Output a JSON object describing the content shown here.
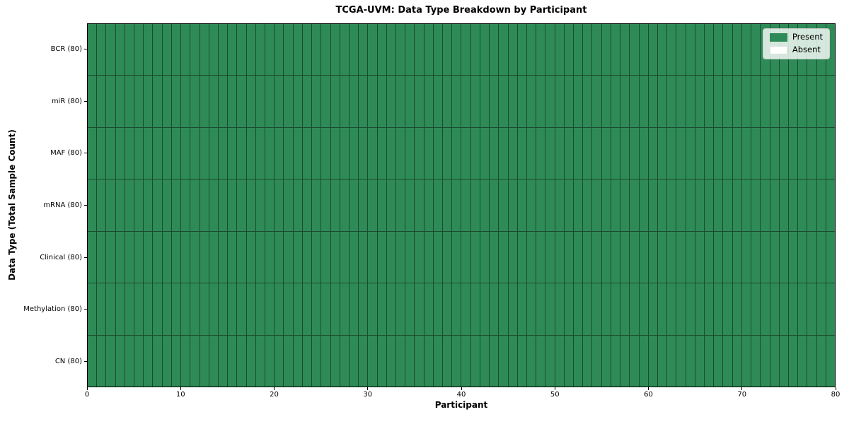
{
  "chart_data": {
    "type": "heatmap",
    "title": "TCGA-UVM: Data Type Breakdown by Participant",
    "xlabel": "Participant",
    "ylabel": "Data Type (Total Sample Count)",
    "xlim": [
      0,
      80
    ],
    "x_ticks": [
      0,
      10,
      20,
      30,
      40,
      50,
      60,
      70,
      80
    ],
    "n_participants": 80,
    "rows": [
      {
        "label": "BCR (80)",
        "data_type": "BCR",
        "total_samples": 80,
        "present_count": 80,
        "absent_count": 0
      },
      {
        "label": "miR (80)",
        "data_type": "miR",
        "total_samples": 80,
        "present_count": 80,
        "absent_count": 0
      },
      {
        "label": "MAF (80)",
        "data_type": "MAF",
        "total_samples": 80,
        "present_count": 80,
        "absent_count": 0
      },
      {
        "label": "mRNA (80)",
        "data_type": "mRNA",
        "total_samples": 80,
        "present_count": 80,
        "absent_count": 0
      },
      {
        "label": "Clinical (80)",
        "data_type": "Clinical",
        "total_samples": 80,
        "present_count": 80,
        "absent_count": 0
      },
      {
        "label": "Methylation (80)",
        "data_type": "Methylation",
        "total_samples": 80,
        "present_count": 80,
        "absent_count": 0
      },
      {
        "label": "CN (80)",
        "data_type": "CN",
        "total_samples": 80,
        "present_count": 80,
        "absent_count": 0
      }
    ],
    "legend": {
      "position": "upper right",
      "entries": [
        {
          "label": "Present",
          "color": "#2e8b57"
        },
        {
          "label": "Absent",
          "color": "#ffffff"
        }
      ]
    },
    "colors": {
      "present": "#2e8b57",
      "absent": "#ffffff",
      "cell_edge": "#1c4a2f",
      "axis": "#000000",
      "legend_border": "#cccccc"
    },
    "grid": "cell borders only, no gridlines"
  }
}
